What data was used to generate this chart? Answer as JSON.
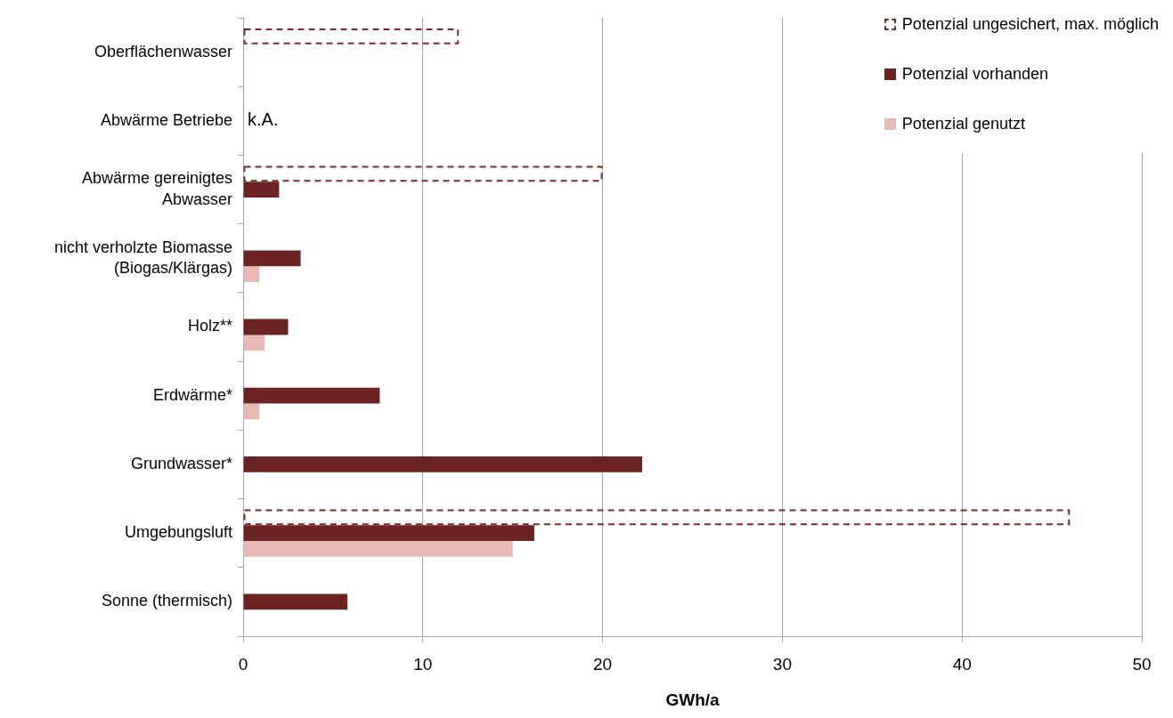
{
  "chart_data": {
    "type": "bar",
    "orientation": "horizontal",
    "categories": [
      "Oberflächenwasser",
      "Abwärme Betriebe",
      "Abwärme gereinigtes Abwasser",
      "nicht verholzte Biomasse (Biogas/Klärgas)",
      "Holz**",
      "Erdwärme*",
      "Grundwasser*",
      "Umgebungsluft",
      "Sonne (thermisch)"
    ],
    "series": [
      {
        "name": "Potenzial ungesichert, max. möglich",
        "color": "#7b2a27",
        "line_style": "dashed",
        "values": [
          12,
          null,
          20,
          null,
          null,
          null,
          null,
          46,
          null
        ]
      },
      {
        "name": "Potenzial vorhanden",
        "color": "#6b2422",
        "values": [
          null,
          null,
          2,
          3.2,
          2.5,
          7.6,
          22.2,
          16.2,
          5.8
        ],
        "value_labels": [
          null,
          "k.A.",
          null,
          null,
          null,
          null,
          null,
          null,
          null
        ]
      },
      {
        "name": "Potenzial genutzt",
        "color": "#e8b9b5",
        "values": [
          null,
          null,
          null,
          0.9,
          1.2,
          0.9,
          null,
          15,
          null
        ]
      }
    ],
    "xlabel": "GWh/a",
    "xlim": [
      0,
      50
    ],
    "xticks": [
      0,
      10,
      20,
      30,
      40,
      50
    ],
    "grid": "x",
    "legend": "top right"
  }
}
